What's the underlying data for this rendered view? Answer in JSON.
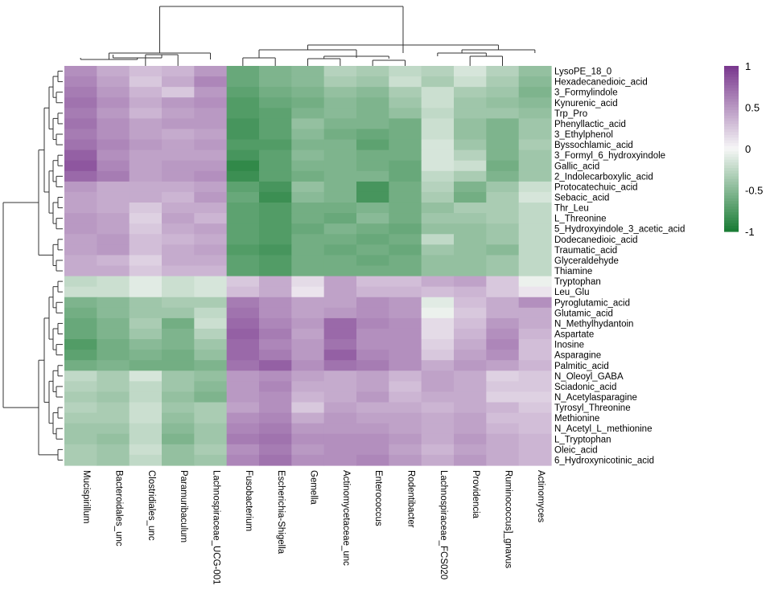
{
  "chart_data": {
    "type": "heatmap",
    "title": "",
    "columns": [
      "Mucispirillum",
      "Bacteroidales_unc",
      "Clostridiales_unc",
      "Paramuribaculum",
      "Lachnospiraceae_UCG-001",
      "Fusobacterium",
      "Escherichia-Shigella",
      "Gemella",
      "Actinomycetaceae_unc",
      "Enterococcus",
      "Rodentibacter",
      "Lachnospiraceae_FCS020",
      "Providencia",
      "Ruminococcus]_gnavus",
      "Actinomyces"
    ],
    "rows": [
      "LysoPE_18_0",
      "Hexadecanedioic_acid",
      "3_Formylindole",
      "Kynurenic_acid",
      "Trp_Pro",
      "Phenyllactic_acid",
      "3_Ethylphenol",
      "Byssochlamic_acid",
      "3_Formyl_6_hydroxyindole",
      "Gallic_acid",
      "2_Indolecarboxylic_acid",
      "Protocatechuic_acid",
      "Sebacic_acid",
      "Thr_Leu",
      "L_Threonine",
      "5_Hydroxyindole_3_acetic_acid",
      "Dodecanedioic_acid",
      "Traumatic_acid",
      "Glyceraldehyde",
      "Thiamine",
      "Tryptophan",
      "Leu_Glu",
      "Pyroglutamic_acid",
      "Glutamic_acid",
      "N_Methylhydantoin",
      "Aspartate",
      "Inosine",
      "Asparagine",
      "Palmitic_acid",
      "N_Oleoyl_GABA",
      "Sciadonic_acid",
      "N_Acetylasparagine",
      "Tyrosyl_Threonine",
      "Methionine",
      "N_Acetyl_L_methionine",
      "L_Tryptophan",
      "Oleic_acid",
      "6_Hydroxynicotinic_acid"
    ],
    "values": [
      [
        0.55,
        0.4,
        0.3,
        0.35,
        0.5,
        -0.65,
        -0.55,
        -0.5,
        -0.3,
        -0.35,
        -0.25,
        -0.3,
        -0.15,
        -0.3,
        -0.45
      ],
      [
        0.6,
        0.45,
        0.25,
        0.4,
        0.6,
        -0.65,
        -0.55,
        -0.5,
        -0.35,
        -0.4,
        -0.2,
        -0.35,
        -0.2,
        -0.35,
        -0.5
      ],
      [
        0.65,
        0.5,
        0.35,
        0.25,
        0.5,
        -0.7,
        -0.6,
        -0.55,
        -0.45,
        -0.5,
        -0.35,
        -0.2,
        -0.35,
        -0.4,
        -0.55
      ],
      [
        0.7,
        0.55,
        0.4,
        0.5,
        0.55,
        -0.75,
        -0.65,
        -0.6,
        -0.5,
        -0.55,
        -0.4,
        -0.2,
        -0.4,
        -0.45,
        -0.5
      ],
      [
        0.65,
        0.5,
        0.35,
        0.45,
        0.5,
        -0.75,
        -0.7,
        -0.55,
        -0.5,
        -0.55,
        -0.45,
        -0.25,
        -0.4,
        -0.4,
        -0.45
      ],
      [
        0.7,
        0.55,
        0.45,
        0.5,
        0.5,
        -0.8,
        -0.7,
        -0.45,
        -0.55,
        -0.55,
        -0.6,
        -0.2,
        -0.45,
        -0.55,
        -0.4
      ],
      [
        0.65,
        0.55,
        0.45,
        0.4,
        0.45,
        -0.8,
        -0.7,
        -0.5,
        -0.6,
        -0.65,
        -0.6,
        -0.2,
        -0.45,
        -0.55,
        -0.4
      ],
      [
        0.7,
        0.6,
        0.5,
        0.45,
        0.5,
        -0.75,
        -0.75,
        -0.55,
        -0.55,
        -0.7,
        -0.6,
        -0.15,
        -0.4,
        -0.55,
        -0.35
      ],
      [
        0.8,
        0.55,
        0.45,
        0.45,
        0.45,
        -0.8,
        -0.7,
        -0.5,
        -0.55,
        -0.6,
        -0.6,
        -0.15,
        -0.3,
        -0.55,
        -0.4
      ],
      [
        0.85,
        0.6,
        0.45,
        0.5,
        0.5,
        -0.9,
        -0.7,
        -0.55,
        -0.55,
        -0.6,
        -0.65,
        -0.15,
        -0.2,
        -0.6,
        -0.4
      ],
      [
        0.75,
        0.65,
        0.45,
        0.5,
        0.55,
        -0.85,
        -0.7,
        -0.6,
        -0.55,
        -0.55,
        -0.65,
        -0.25,
        -0.35,
        -0.55,
        -0.4
      ],
      [
        0.5,
        0.4,
        0.4,
        0.4,
        0.45,
        -0.7,
        -0.8,
        -0.45,
        -0.55,
        -0.8,
        -0.6,
        -0.3,
        -0.55,
        -0.4,
        -0.2
      ],
      [
        0.45,
        0.4,
        0.4,
        0.35,
        0.5,
        -0.65,
        -0.85,
        -0.5,
        -0.55,
        -0.8,
        -0.6,
        -0.35,
        -0.6,
        -0.35,
        -0.15
      ],
      [
        0.45,
        0.4,
        0.25,
        0.4,
        0.4,
        -0.7,
        -0.75,
        -0.6,
        -0.6,
        -0.55,
        -0.6,
        -0.45,
        -0.35,
        -0.35,
        -0.25
      ],
      [
        0.5,
        0.45,
        0.2,
        0.45,
        0.35,
        -0.7,
        -0.75,
        -0.6,
        -0.65,
        -0.5,
        -0.6,
        -0.4,
        -0.4,
        -0.35,
        -0.25
      ],
      [
        0.5,
        0.45,
        0.25,
        0.4,
        0.45,
        -0.7,
        -0.75,
        -0.65,
        -0.55,
        -0.6,
        -0.65,
        -0.45,
        -0.45,
        -0.4,
        -0.25
      ],
      [
        0.45,
        0.5,
        0.3,
        0.35,
        0.4,
        -0.7,
        -0.75,
        -0.6,
        -0.6,
        -0.65,
        -0.6,
        -0.25,
        -0.45,
        -0.4,
        -0.25
      ],
      [
        0.45,
        0.5,
        0.3,
        0.4,
        0.45,
        -0.75,
        -0.8,
        -0.6,
        -0.65,
        -0.6,
        -0.65,
        -0.4,
        -0.45,
        -0.5,
        -0.25
      ],
      [
        0.4,
        0.35,
        0.2,
        0.4,
        0.4,
        -0.7,
        -0.75,
        -0.6,
        -0.6,
        -0.65,
        -0.6,
        -0.45,
        -0.45,
        -0.4,
        -0.25
      ],
      [
        0.4,
        0.4,
        0.25,
        0.35,
        0.35,
        -0.7,
        -0.75,
        -0.6,
        -0.6,
        -0.6,
        -0.6,
        -0.45,
        -0.45,
        -0.4,
        -0.25
      ],
      [
        -0.25,
        -0.2,
        -0.1,
        -0.2,
        -0.15,
        0.25,
        0.4,
        0.15,
        0.45,
        0.3,
        0.3,
        0.4,
        0.45,
        0.25,
        -0.05
      ],
      [
        -0.2,
        -0.2,
        -0.1,
        -0.2,
        -0.15,
        0.3,
        0.4,
        0.1,
        0.45,
        0.35,
        0.35,
        0.3,
        0.35,
        0.25,
        0.1
      ],
      [
        -0.55,
        -0.5,
        -0.4,
        -0.35,
        -0.35,
        0.65,
        0.55,
        0.45,
        0.45,
        0.55,
        0.5,
        -0.1,
        0.3,
        0.4,
        0.55
      ],
      [
        -0.6,
        -0.5,
        -0.4,
        -0.4,
        -0.25,
        0.7,
        0.55,
        0.45,
        0.5,
        0.55,
        0.5,
        -0.05,
        0.25,
        0.4,
        0.4
      ],
      [
        -0.65,
        -0.55,
        -0.35,
        -0.6,
        -0.2,
        0.75,
        0.6,
        0.5,
        0.75,
        0.6,
        0.55,
        0.15,
        0.3,
        0.5,
        0.4
      ],
      [
        -0.65,
        -0.55,
        -0.4,
        -0.55,
        -0.3,
        0.8,
        0.65,
        0.45,
        0.75,
        0.55,
        0.55,
        0.15,
        0.35,
        0.55,
        0.35
      ],
      [
        -0.75,
        -0.6,
        -0.5,
        -0.55,
        -0.4,
        0.75,
        0.6,
        0.5,
        0.7,
        0.55,
        0.55,
        0.2,
        0.4,
        0.6,
        0.3
      ],
      [
        -0.7,
        -0.6,
        -0.55,
        -0.6,
        -0.45,
        0.75,
        0.65,
        0.5,
        0.8,
        0.6,
        0.55,
        0.25,
        0.45,
        0.55,
        0.3
      ],
      [
        -0.6,
        -0.55,
        -0.6,
        -0.6,
        -0.55,
        0.7,
        0.8,
        0.55,
        0.7,
        0.65,
        0.55,
        0.4,
        0.5,
        0.45,
        0.35
      ],
      [
        -0.25,
        -0.35,
        -0.15,
        -0.4,
        -0.45,
        0.5,
        0.55,
        0.45,
        0.4,
        0.45,
        0.35,
        0.45,
        0.4,
        0.2,
        0.25
      ],
      [
        -0.3,
        -0.35,
        -0.25,
        -0.4,
        -0.5,
        0.5,
        0.6,
        0.4,
        0.4,
        0.45,
        0.3,
        0.45,
        0.4,
        0.25,
        0.25
      ],
      [
        -0.35,
        -0.4,
        -0.25,
        -0.45,
        -0.55,
        0.5,
        0.55,
        0.35,
        0.4,
        0.5,
        0.35,
        0.4,
        0.4,
        0.2,
        0.2
      ],
      [
        -0.3,
        -0.35,
        -0.2,
        -0.4,
        -0.35,
        0.45,
        0.55,
        0.25,
        0.45,
        0.4,
        0.4,
        0.35,
        0.4,
        0.35,
        0.25
      ],
      [
        -0.35,
        -0.35,
        -0.2,
        -0.45,
        -0.35,
        0.55,
        0.6,
        0.4,
        0.5,
        0.45,
        0.45,
        0.4,
        0.45,
        0.3,
        0.3
      ],
      [
        -0.4,
        -0.4,
        -0.25,
        -0.5,
        -0.4,
        0.6,
        0.65,
        0.5,
        0.5,
        0.5,
        0.45,
        0.4,
        0.45,
        0.35,
        0.3
      ],
      [
        -0.4,
        -0.45,
        -0.25,
        -0.55,
        -0.4,
        0.65,
        0.7,
        0.55,
        0.55,
        0.55,
        0.5,
        0.4,
        0.5,
        0.4,
        0.35
      ],
      [
        -0.35,
        -0.4,
        -0.2,
        -0.45,
        -0.35,
        0.55,
        0.65,
        0.5,
        0.55,
        0.55,
        0.45,
        0.35,
        0.45,
        0.4,
        0.35
      ],
      [
        -0.35,
        -0.4,
        -0.25,
        -0.45,
        -0.4,
        0.6,
        0.7,
        0.55,
        0.55,
        0.6,
        0.5,
        0.4,
        0.5,
        0.4,
        0.35
      ]
    ],
    "color_scale": {
      "min": -1,
      "max": 1,
      "low_color": "#1b7d36",
      "mid_color": "#f7f7f7",
      "high_color": "#7b3a8f"
    },
    "legend": {
      "ticks": [
        {
          "value": 1,
          "label": "1"
        },
        {
          "value": 0.5,
          "label": "0.5"
        },
        {
          "value": 0,
          "label": "0"
        },
        {
          "value": -0.5,
          "label": "-0.5"
        },
        {
          "value": -1,
          "label": "-1"
        }
      ],
      "position": "top-right"
    },
    "row_clusters": {
      "top_group_size": 20,
      "bottom_group_size": 18
    },
    "column_clusters": {
      "left_group_size": 5,
      "right_group_size": 10
    }
  }
}
